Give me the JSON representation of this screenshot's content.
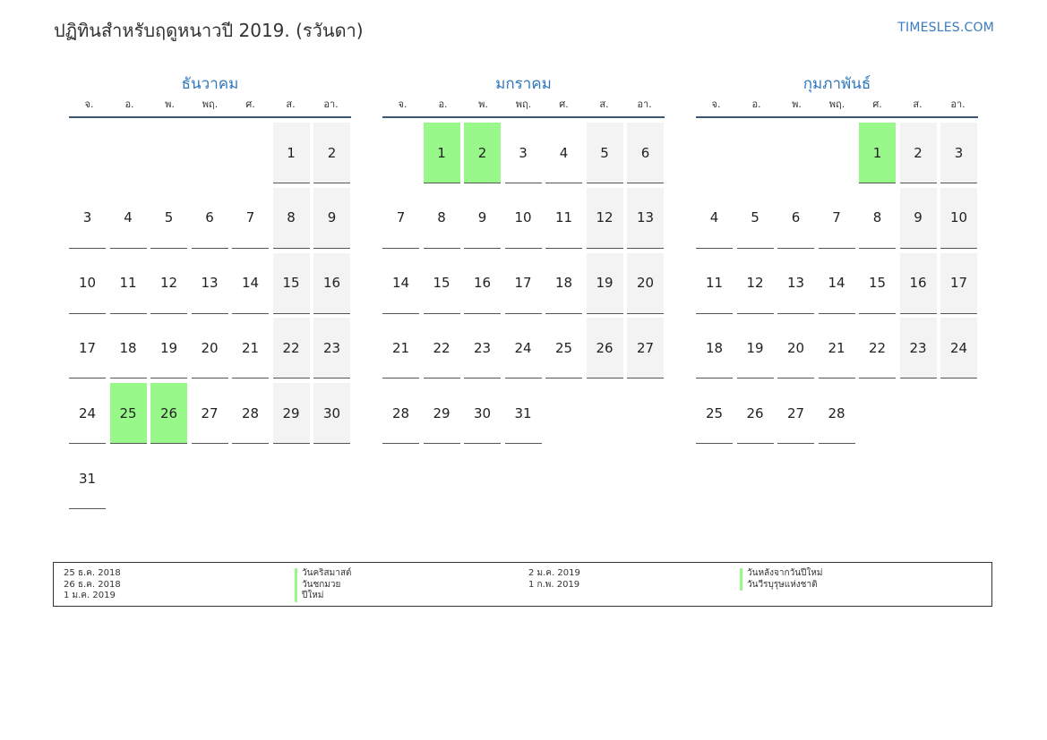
{
  "title": "ปฏิทินสำหรับฤดูหนาวปี 2019. (รวันดา)",
  "site": "TIMESLES.COM",
  "weekdays": [
    "จ.",
    "อ.",
    "พ.",
    "พฤ.",
    "ศ.",
    "ส.",
    "อา."
  ],
  "colors": {
    "holiday": "#98f98a",
    "weekend": "#f3f3f3",
    "accent": "#2f77bc"
  },
  "months": [
    {
      "name": "ธันวาคม",
      "start_offset": 5,
      "days": 31,
      "holidays": [
        25,
        26
      ]
    },
    {
      "name": "มกราคม",
      "start_offset": 1,
      "days": 31,
      "holidays": [
        1,
        2
      ]
    },
    {
      "name": "กุมภาพันธ์",
      "start_offset": 4,
      "days": 28,
      "holidays": [
        1
      ]
    }
  ],
  "legend": {
    "left": [
      {
        "date": "25 ธ.ค. 2018",
        "name": "วันคริสมาสต์"
      },
      {
        "date": "26 ธ.ค. 2018",
        "name": "วันชกมวย"
      },
      {
        "date": "1 ม.ค. 2019",
        "name": "ปีใหม่"
      }
    ],
    "right": [
      {
        "date": "2 ม.ค. 2019",
        "name": "วันหลังจากวันปีใหม่"
      },
      {
        "date": "1 ก.พ. 2019",
        "name": "วันวีรบุรุษแห่งชาติ"
      }
    ]
  }
}
